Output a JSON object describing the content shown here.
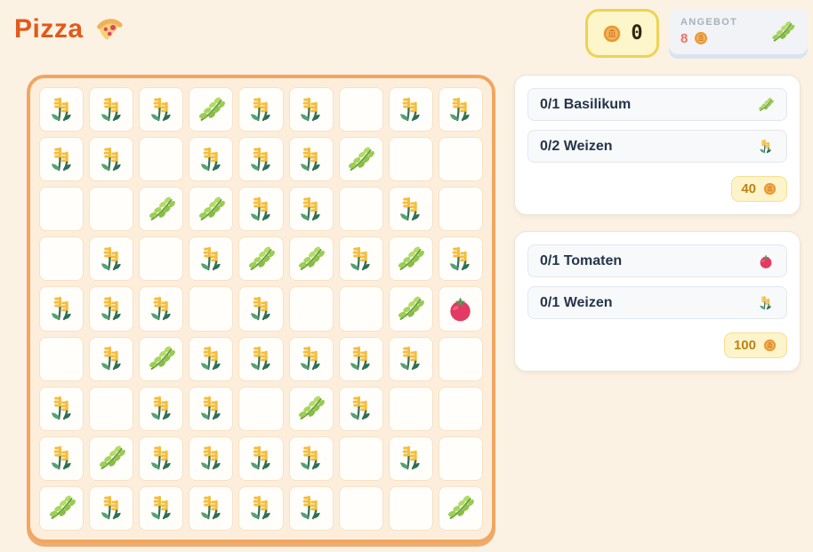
{
  "header": {
    "title": "Pizza",
    "coin_balance": "0",
    "offer": {
      "label": "ANGEBOT",
      "count": "8",
      "item": "herb"
    }
  },
  "field": {
    "rows": 9,
    "cols": 9,
    "cells": [
      "wheat",
      "wheat",
      "wheat",
      "herb",
      "wheat",
      "wheat",
      "empty",
      "wheat",
      "wheat",
      "wheat",
      "wheat",
      "empty",
      "wheat",
      "wheat",
      "wheat",
      "herb",
      "empty",
      "empty",
      "empty",
      "empty",
      "herb",
      "herb",
      "wheat",
      "wheat",
      "empty",
      "wheat",
      "empty",
      "empty",
      "wheat",
      "empty",
      "wheat",
      "herb",
      "herb",
      "wheat",
      "herb",
      "wheat",
      "wheat",
      "wheat",
      "wheat",
      "empty",
      "wheat",
      "empty",
      "empty",
      "herb",
      "tomato",
      "empty",
      "wheat",
      "herb",
      "wheat",
      "wheat",
      "wheat",
      "wheat",
      "wheat",
      "empty",
      "wheat",
      "empty",
      "wheat",
      "wheat",
      "empty",
      "herb",
      "wheat",
      "empty",
      "empty",
      "wheat",
      "herb",
      "wheat",
      "wheat",
      "wheat",
      "wheat",
      "empty",
      "wheat",
      "empty",
      "herb",
      "wheat",
      "wheat",
      "wheat",
      "wheat",
      "wheat",
      "empty",
      "empty",
      "herb"
    ]
  },
  "orders": [
    {
      "items": [
        {
          "label": "0/1 Basilikum",
          "icon": "herb"
        },
        {
          "label": "0/2 Weizen",
          "icon": "wheat"
        }
      ],
      "reward": "40"
    },
    {
      "items": [
        {
          "label": "0/1 Tomaten",
          "icon": "tomato"
        },
        {
          "label": "0/1 Weizen",
          "icon": "wheat"
        }
      ],
      "reward": "100"
    }
  ],
  "colors": {
    "accent": "#e2591d",
    "grid_border": "#f2a660",
    "coin_gold": "#eb9b33",
    "offer_count": "#ee7166",
    "reward_text": "#bd8313"
  }
}
